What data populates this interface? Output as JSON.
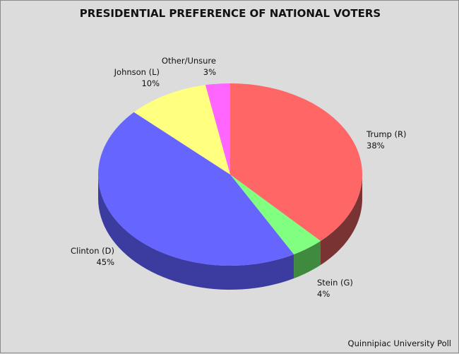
{
  "chart_data": {
    "type": "pie",
    "title": "PRESIDENTIAL PREFERENCE OF NATIONAL VOTERS",
    "categories": [
      "Trump (R)",
      "Stein (G)",
      "Clinton (D)",
      "Johnson (L)",
      "Other/Unsure"
    ],
    "values": [
      38,
      4,
      45,
      10,
      3
    ],
    "value_labels": [
      "38%",
      "4%",
      "45%",
      "10%",
      "3%"
    ],
    "colors": [
      "#ff6666",
      "#80ff80",
      "#6666ff",
      "#ffff80",
      "#ff66ff"
    ],
    "side_colors": [
      "#7a3333",
      "#3f8a3f",
      "#3c3ca0",
      "#8a8a40",
      "#8a338a"
    ],
    "start_angle": "12 o'clock",
    "direction": "clockwise",
    "style": "3d",
    "source": "Quinnipiac University Poll"
  },
  "labels": {
    "trump": {
      "name": "Trump (R)",
      "pct": "38%"
    },
    "stein": {
      "name": "Stein (G)",
      "pct": "4%"
    },
    "clinton": {
      "name": "Clinton (D)",
      "pct": "45%"
    },
    "johnson": {
      "name": "Johnson (L)",
      "pct": "10%"
    },
    "other": {
      "name": "Other/Unsure",
      "pct": "3%"
    }
  }
}
